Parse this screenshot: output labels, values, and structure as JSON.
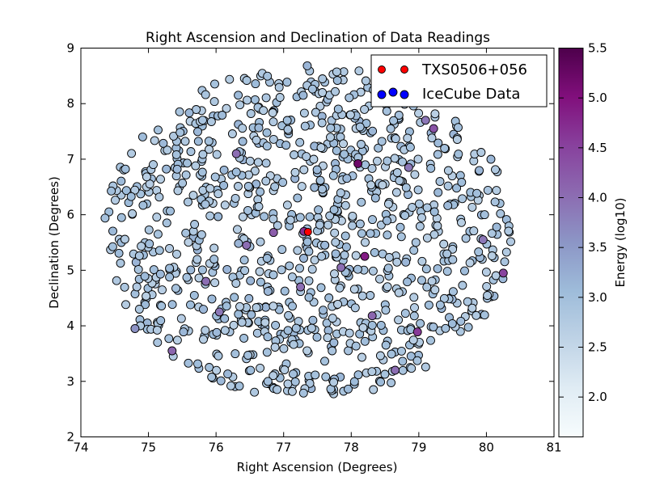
{
  "chart_data": {
    "type": "scatter",
    "title": "Right Ascension and Declination of Data Readings",
    "xlabel": "Right Ascension (Degrees)",
    "ylabel": "Declination (Degrees)",
    "xlim": [
      74,
      81
    ],
    "ylim": [
      2,
      9
    ],
    "xticks": [
      "74",
      "75",
      "76",
      "77",
      "78",
      "79",
      "80",
      "81"
    ],
    "yticks": [
      "2",
      "3",
      "4",
      "5",
      "6",
      "7",
      "8",
      "9"
    ],
    "grid": false,
    "legend_position": "top-right",
    "colorbar": {
      "label": "Energy (log10)",
      "range": [
        1.6,
        5.5
      ],
      "ticks": [
        "2.0",
        "2.5",
        "3.0",
        "3.5",
        "4.0",
        "4.5",
        "5.0",
        "5.5"
      ],
      "colormap": "BuPu",
      "colors": [
        "#f7fcfd",
        "#e0ecf4",
        "#bfd3e6",
        "#9ebcda",
        "#8c96c6",
        "#8c6bb1",
        "#88419d",
        "#810f7c",
        "#4d004b"
      ]
    },
    "series": [
      {
        "name": "TXS0506+056",
        "color": "#ff0000",
        "points": [
          {
            "ra": 77.36,
            "dec": 5.69
          }
        ]
      },
      {
        "name": "IceCube Data",
        "color": "#0000ff",
        "count_approx": 1000,
        "region": {
          "center_ra": 77.36,
          "center_dec": 5.69,
          "radius_deg": 3.0
        },
        "energy_typical": 2.9,
        "points": [
          {
            "ra": 78.1,
            "dec": 6.92,
            "energy": 5.2
          },
          {
            "ra": 78.2,
            "dec": 5.25,
            "energy": 4.9
          },
          {
            "ra": 78.31,
            "dec": 4.18,
            "energy": 4.1
          },
          {
            "ra": 78.98,
            "dec": 3.89,
            "energy": 4.6
          },
          {
            "ra": 80.25,
            "dec": 4.95,
            "energy": 4.5
          },
          {
            "ra": 79.22,
            "dec": 7.55,
            "energy": 4.3
          },
          {
            "ra": 76.05,
            "dec": 4.25,
            "energy": 3.9
          },
          {
            "ra": 75.35,
            "dec": 3.55,
            "energy": 4.1
          },
          {
            "ra": 77.3,
            "dec": 5.7,
            "energy": 4.7
          },
          {
            "ra": 76.85,
            "dec": 5.68,
            "energy": 4.2
          },
          {
            "ra": 76.45,
            "dec": 5.45,
            "energy": 4.0
          },
          {
            "ra": 76.3,
            "dec": 7.1,
            "energy": 4.0
          },
          {
            "ra": 75.85,
            "dec": 4.8,
            "energy": 4.0
          },
          {
            "ra": 74.8,
            "dec": 3.95,
            "energy": 3.6
          },
          {
            "ra": 79.1,
            "dec": 7.7,
            "energy": 3.9
          },
          {
            "ra": 78.85,
            "dec": 6.85,
            "energy": 3.9
          },
          {
            "ra": 78.65,
            "dec": 3.2,
            "energy": 4.0
          },
          {
            "ra": 77.25,
            "dec": 4.7,
            "energy": 4.0
          },
          {
            "ra": 79.95,
            "dec": 5.55,
            "energy": 3.9
          },
          {
            "ra": 77.85,
            "dec": 5.05,
            "energy": 4.0
          }
        ]
      }
    ]
  }
}
